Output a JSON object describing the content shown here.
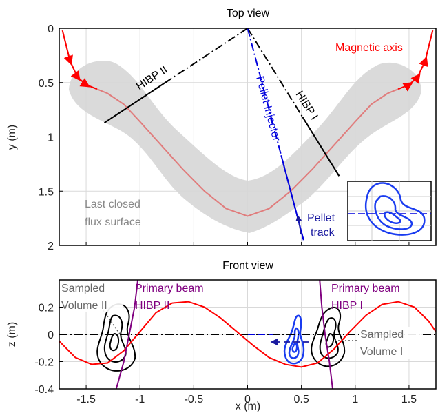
{
  "chart_data": [
    {
      "type": "line",
      "title": "Top view",
      "xlabel": "",
      "ylabel": "y (m)",
      "xlim": [
        -1.75,
        1.75
      ],
      "ylim": [
        2,
        0
      ],
      "y_reversed": true,
      "grid": true,
      "x_ticks": [
        -1.5,
        -1,
        -0.5,
        0,
        0.5,
        1,
        1.5
      ],
      "y_ticks": [
        "0",
        "0.5",
        "1",
        "1.5",
        "2"
      ],
      "y_tick_values": [
        0,
        0.5,
        1,
        1.5,
        2
      ],
      "series": [
        {
          "name": "Magnetic axis",
          "color": "#ff0000",
          "x": [
            -1.72,
            -1.65,
            -1.58,
            -1.5,
            -1.4,
            -1.3,
            -1.15,
            -1.0,
            -0.8,
            -0.6,
            -0.4,
            -0.2,
            0.0,
            0.2,
            0.4,
            0.6,
            0.8,
            1.0,
            1.15,
            1.3,
            1.4,
            1.5,
            1.58,
            1.65,
            1.72
          ],
          "y": [
            0.02,
            0.3,
            0.45,
            0.52,
            0.56,
            0.6,
            0.7,
            0.86,
            1.08,
            1.3,
            1.5,
            1.66,
            1.73,
            1.66,
            1.5,
            1.3,
            1.08,
            0.86,
            0.7,
            0.6,
            0.56,
            0.52,
            0.45,
            0.3,
            0.02
          ]
        },
        {
          "name": "HIBP II",
          "color": "#000000",
          "x": [
            0.0,
            -1.33
          ],
          "y": [
            0.0,
            0.87
          ]
        },
        {
          "name": "HIBP I",
          "color": "#000000",
          "x": [
            0.0,
            0.85
          ],
          "y": [
            0.0,
            1.36
          ]
        },
        {
          "name": "Pellet Injector",
          "color": "#0000dd",
          "x": [
            0.0,
            0.52
          ],
          "y": [
            0.0,
            1.95
          ]
        }
      ],
      "annotations": {
        "magnetic_axis": "Magnetic axis",
        "hibp2": "HIBP II",
        "hibp1": "HIBP I",
        "pellet_injector": "Pellet Injector",
        "pellet_track_1": "Pellet",
        "pellet_track_2": "track",
        "lcfs_1": "Last closed",
        "lcfs_2": "flux surface"
      }
    },
    {
      "type": "line",
      "title": "Front view",
      "xlabel": "x (m)",
      "ylabel": "z (m)",
      "xlim": [
        -1.75,
        1.75
      ],
      "ylim": [
        -0.4,
        0.4
      ],
      "grid": true,
      "x_ticks": [
        "-1.5",
        "-1",
        "-0.5",
        "0",
        "0.5",
        "1",
        "1.5"
      ],
      "x_tick_values": [
        -1.5,
        -1,
        -0.5,
        0,
        0.5,
        1,
        1.5
      ],
      "y_ticks": [
        "-0.4",
        "-0.2",
        "0",
        "0.2"
      ],
      "y_tick_values": [
        -0.4,
        -0.2,
        0,
        0.2
      ],
      "series": [
        {
          "name": "Magnetic axis",
          "color": "#ff0000",
          "x": [
            -1.75,
            -1.6,
            -1.45,
            -1.3,
            -1.15,
            -1.0,
            -0.85,
            -0.7,
            -0.55,
            -0.4,
            -0.25,
            -0.1,
            0.05,
            0.2,
            0.35,
            0.5,
            0.65,
            0.8,
            0.95,
            1.1,
            1.25,
            1.4,
            1.55,
            1.68,
            1.75
          ],
          "y": [
            -0.05,
            -0.17,
            -0.22,
            -0.21,
            -0.12,
            0.02,
            0.16,
            0.23,
            0.24,
            0.2,
            0.12,
            0.02,
            -0.08,
            -0.17,
            -0.22,
            -0.24,
            -0.21,
            -0.11,
            0.02,
            0.14,
            0.22,
            0.24,
            0.2,
            0.1,
            0.02
          ]
        },
        {
          "name": "Primary beam HIBP II",
          "color": "#800080",
          "x": [
            -1.02,
            -1.05,
            -1.1,
            -1.15,
            -1.22
          ],
          "y": [
            0.4,
            0.2,
            0.0,
            -0.2,
            -0.4
          ]
        },
        {
          "name": "Primary beam HIBP I",
          "color": "#800080",
          "x": [
            0.67,
            0.69,
            0.72,
            0.76,
            0.79
          ],
          "y": [
            0.4,
            0.2,
            0.0,
            -0.2,
            -0.4
          ]
        }
      ],
      "annotations": {
        "sv2_1": "Sampled",
        "sv2_2": "Volume II",
        "pb2_1": "Primary beam",
        "pb2_2": "HIBP II",
        "pb1_1": "Primary beam",
        "pb1_2": "HIBP I",
        "sv1_1": "Sampled",
        "sv1_2": "Volume I"
      }
    }
  ]
}
